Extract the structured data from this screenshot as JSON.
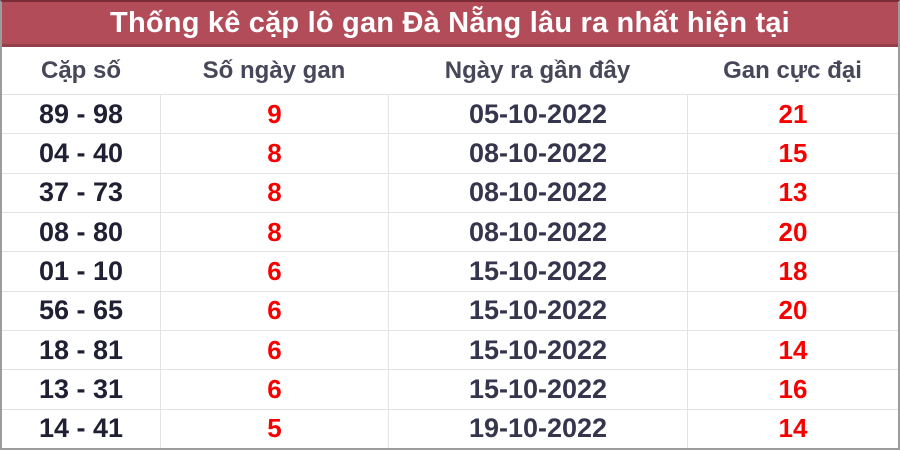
{
  "title": "Thống kê cặp lô gan Đà Nẵng lâu ra nhất hiện tại",
  "colors": {
    "title_bar_background": "#b14c58",
    "title_bar_border": "#94404c",
    "title_text": "#ffffff",
    "highlight_red": "#f70000",
    "pair_text": "#202034",
    "date_text": "#35354e",
    "header_text": "#47475a",
    "grid_line": "#e3e3e3",
    "outer_border": "#9c9c9c"
  },
  "table": {
    "columns": [
      "Cặp số",
      "Số ngày gan",
      "Ngày ra gần đây",
      "Gan cực đại"
    ],
    "rows": [
      {
        "pair": "89 - 98",
        "gan_days": "9",
        "last_date": "05-10-2022",
        "max_gan": "21"
      },
      {
        "pair": "04 - 40",
        "gan_days": "8",
        "last_date": "08-10-2022",
        "max_gan": "15"
      },
      {
        "pair": "37 - 73",
        "gan_days": "8",
        "last_date": "08-10-2022",
        "max_gan": "13"
      },
      {
        "pair": "08 - 80",
        "gan_days": "8",
        "last_date": "08-10-2022",
        "max_gan": "20"
      },
      {
        "pair": "01 - 10",
        "gan_days": "6",
        "last_date": "15-10-2022",
        "max_gan": "18"
      },
      {
        "pair": "56 - 65",
        "gan_days": "6",
        "last_date": "15-10-2022",
        "max_gan": "20"
      },
      {
        "pair": "18 - 81",
        "gan_days": "6",
        "last_date": "15-10-2022",
        "max_gan": "14"
      },
      {
        "pair": "13 - 31",
        "gan_days": "6",
        "last_date": "15-10-2022",
        "max_gan": "16"
      },
      {
        "pair": "14 - 41",
        "gan_days": "5",
        "last_date": "19-10-2022",
        "max_gan": "14"
      }
    ]
  }
}
